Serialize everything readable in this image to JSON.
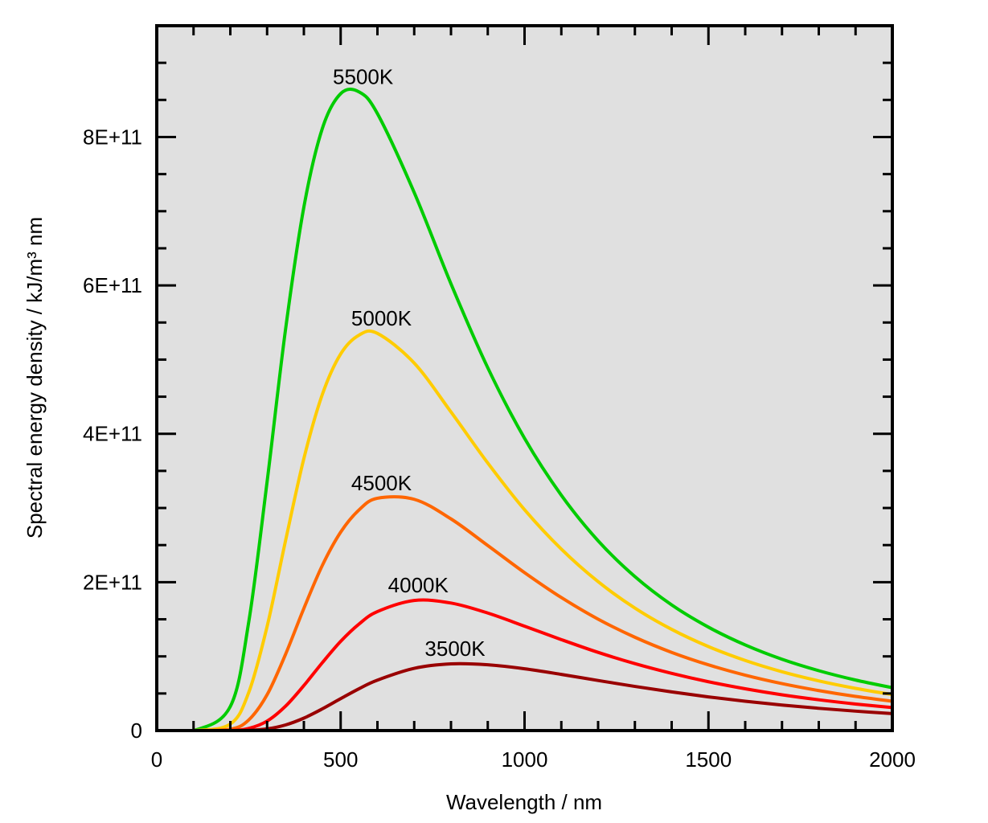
{
  "chart_data": {
    "type": "line",
    "title": "",
    "xlabel": "Wavelength / nm",
    "ylabel": "Spectral energy density / kJ/m³ nm",
    "xlim": [
      0,
      2000
    ],
    "ylim": [
      0,
      950000000000.0
    ],
    "x_ticks": [
      0,
      500,
      1000,
      1500,
      2000
    ],
    "x_tick_labels": [
      "0",
      "500",
      "1000",
      "1500",
      "2000"
    ],
    "y_ticks": [
      0,
      200000000000.0,
      400000000000.0,
      600000000000.0,
      800000000000.0
    ],
    "y_tick_labels": [
      "0",
      "2E+11",
      "4E+11",
      "6E+11",
      "8E+11"
    ],
    "grid": false,
    "legend": "none (curves labelled at peaks)",
    "background_color": "#e0e0e0",
    "x": [
      0,
      100,
      200,
      250,
      300,
      350,
      400,
      450,
      500,
      550,
      600,
      700,
      800,
      900,
      1000,
      1100,
      1200,
      1300,
      1400,
      1500,
      1600,
      1700,
      1800,
      1900,
      2000
    ],
    "series": [
      {
        "name": "5500K",
        "color": "#00cc00",
        "values": [
          0,
          0,
          32500000000.0,
          146100000000.0,
          335400000000.0,
          540100000000.0,
          705600000000.0,
          811200000000.0,
          858400000000.0,
          860800000000.0,
          831500000000.0,
          725200000000.0,
          602100000000.0,
          489000000000.0,
          393900000000.0,
          317200000000.0,
          255800000000.0,
          207600000000.0,
          169400000000.0,
          139400000000.0,
          115400000000.0,
          96100000000.0,
          80700000000.0,
          68100000000.0,
          57800000000.0
        ]
      },
      {
        "name": "5000K",
        "color": "#ffcc00",
        "values": [
          0,
          0,
          8800000000.0,
          51300000000.0,
          140300000000.0,
          255600000000.0,
          366700000000.0,
          452800000000.0,
          507600000000.0,
          533000000000.0,
          535300000000.0,
          495300000000.0,
          429400000000.0,
          360600000000.0,
          297700000000.0,
          244600000000.0,
          200700000000.0,
          165100000000.0,
          136400000000.0,
          113200000000.0,
          94500000000.0,
          79300000000.0,
          67000000000.0,
          56900000000.0,
          48500000000.0
        ]
      },
      {
        "name": "4500K",
        "color": "#ff6600",
        "values": [
          0,
          0,
          1800000000.0,
          14300000000.0,
          48300000000.0,
          102600000000.0,
          164700000000.0,
          222400000000.0,
          267400000000.0,
          297400000000.0,
          313100000000.0,
          311700000000.0,
          285300000000.0,
          249400000000.0,
          212900000000.0,
          179300000000.0,
          150200000000.0,
          125800000000.0,
          105400000000.0,
          88600000000.0,
          74700000000.0,
          63300000000.0,
          53900000000.0,
          46000000000.0,
          39500000000.0
        ]
      },
      {
        "name": "4000K",
        "color": "#ff0000",
        "values": [
          0,
          0,
          200000000.0,
          2900000000.0,
          12800000000.0,
          32800000000.0,
          60700000000.0,
          91400000000.0,
          120200000000.0,
          143600000000.0,
          160400000000.0,
          175300000000.0,
          171900000000.0,
          158400000000.0,
          140700000000.0,
          122600000000.0,
          105400000000.0,
          90200000000.0,
          77100000000.0,
          65800000000.0,
          56300000000.0,
          48200000000.0,
          41500000000.0,
          35800000000.0,
          31000000000.0
        ]
      },
      {
        "name": "3500K",
        "color": "#990000",
        "values": [
          0,
          0,
          0,
          400000000.0,
          2300000000.0,
          7600000000.0,
          16800000000.0,
          29200000000.0,
          43000000000.0,
          56400000000.0,
          68000000000.0,
          83900000000.0,
          89900000000.0,
          88700000000.0,
          83300000000.0,
          75700000000.0,
          67500000000.0,
          59500000000.0,
          52100000000.0,
          45400000000.0,
          39500000000.0,
          34400000000.0,
          30000000000.0,
          26200000000.0,
          22900000000.0
        ]
      }
    ]
  }
}
